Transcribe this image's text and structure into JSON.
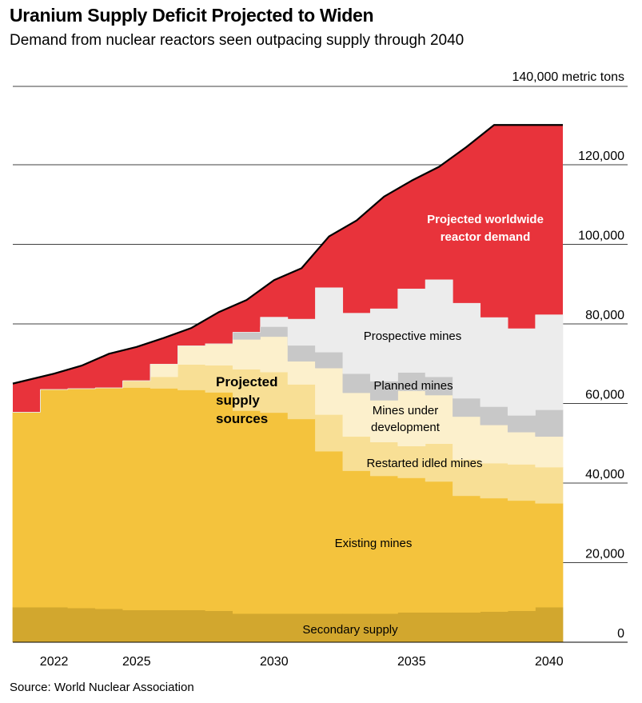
{
  "title": "Uranium Supply Deficit Projected to Widen",
  "subtitle": "Demand from nuclear reactors seen outpacing supply through 2040",
  "source": "Source: World Nuclear Association",
  "chart_data": {
    "type": "area",
    "x": [
      2021,
      2022,
      2023,
      2024,
      2025,
      2026,
      2027,
      2028,
      2029,
      2030,
      2031,
      2032,
      2033,
      2034,
      2035,
      2036,
      2037,
      2038,
      2039,
      2040
    ],
    "xlabel_ticks": [
      "2022",
      "2025",
      "2030",
      "2035",
      "2040"
    ],
    "xlabel_tick_values": [
      2022,
      2025,
      2030,
      2035,
      2040
    ],
    "ylim": [
      0,
      140000
    ],
    "y_unit_label": "140,000 metric tons",
    "y_ticks": [
      0,
      20000,
      40000,
      60000,
      80000,
      100000,
      120000
    ],
    "y_tick_labels": [
      "0",
      "20,000",
      "40,000",
      "60,000",
      "80,000",
      "100,000",
      "120,000"
    ],
    "series": [
      {
        "name": "Secondary supply",
        "color": "#d2a72e",
        "values": [
          8800,
          8800,
          8600,
          8400,
          8100,
          8100,
          8100,
          7900,
          7200,
          7200,
          7200,
          7200,
          7200,
          7200,
          7500,
          7500,
          7500,
          7700,
          7900,
          8800
        ]
      },
      {
        "name": "Existing mines",
        "color": "#f4c33d",
        "values": [
          49000,
          54700,
          55100,
          55500,
          55900,
          55700,
          55300,
          54900,
          51000,
          50500,
          48900,
          40800,
          35900,
          34600,
          33800,
          32900,
          29300,
          28500,
          27700,
          26100
        ]
      },
      {
        "name": "Restarted idled mines",
        "color": "#f8df95",
        "values": [
          0,
          0,
          0,
          0,
          1700,
          2900,
          6400,
          6800,
          10400,
          10200,
          8700,
          9200,
          8600,
          8500,
          8000,
          9500,
          9100,
          8800,
          9100,
          9100
        ]
      },
      {
        "name": "Mines under development",
        "color": "#fcf0cc",
        "values": [
          0,
          0,
          0,
          0,
          0,
          3200,
          4700,
          5400,
          7500,
          8900,
          5800,
          11700,
          11000,
          10500,
          13900,
          12200,
          10800,
          9600,
          8100,
          7700
        ]
      },
      {
        "name": "Planned mines",
        "color": "#c8c8c8",
        "values": [
          0,
          0,
          0,
          0,
          0,
          0,
          0,
          0,
          1800,
          2500,
          4000,
          4000,
          4800,
          4800,
          4600,
          4600,
          4600,
          4600,
          4200,
          6700
        ]
      },
      {
        "name": "Prospective mines",
        "color": "#ececec",
        "values": [
          0,
          0,
          0,
          0,
          0,
          0,
          0,
          0,
          0,
          2400,
          6600,
          16200,
          15200,
          18200,
          21000,
          24400,
          23900,
          22400,
          21800,
          23900
        ]
      },
      {
        "name": "Projected worldwide reactor demand",
        "color": "#e8333b",
        "total": [
          65000,
          67500,
          69500,
          72500,
          74200,
          76500,
          79000,
          83000,
          86000,
          91000,
          94000,
          102000,
          106000,
          112000,
          116000,
          119500,
          124500,
          130000,
          130000,
          130000
        ]
      }
    ],
    "demand_line_color": "#000000",
    "annotations": {
      "demand": [
        "Projected worldwide",
        "reactor demand"
      ],
      "supply": [
        "Projected",
        "supply",
        "sources"
      ],
      "prospective": "Prospective mines",
      "planned": "Planned mines",
      "development": [
        "Mines under",
        "development"
      ],
      "restarted": "Restarted idled mines",
      "existing": "Existing mines",
      "secondary": "Secondary supply"
    }
  }
}
